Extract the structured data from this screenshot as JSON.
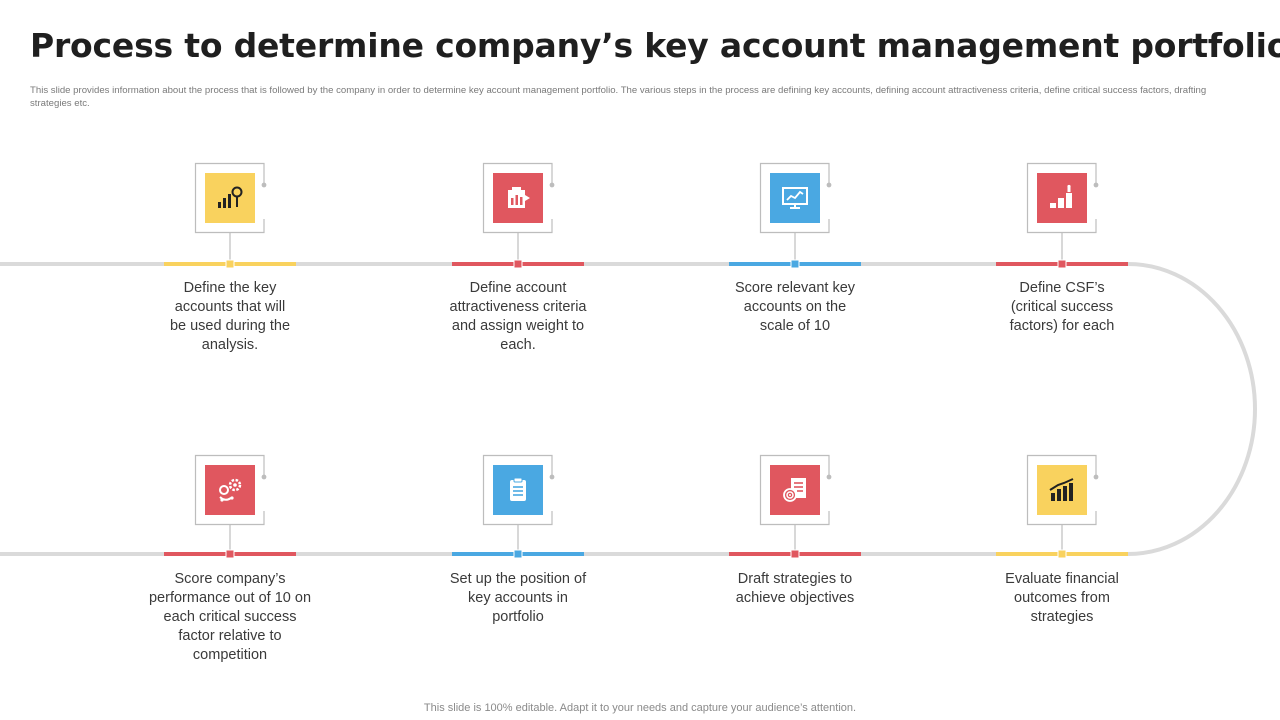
{
  "header": {
    "title": "Process to determine company’s key account management portfolio",
    "description": "This slide provides information about the process that is followed by the company in order to determine key account management portfolio. The various steps in the process are defining key accounts, defining account attractiveness criteria, define critical success factors, drafting strategies etc."
  },
  "colors": {
    "yellow": "#F9D25E",
    "red": "#E0575F",
    "blue": "#4AA8E2",
    "track": "#DADADA"
  },
  "steps": [
    {
      "label": "Define the key accounts that will be used during the analysis.",
      "icon": "bar-chart-magnifier-icon",
      "color": "yellow"
    },
    {
      "label": "Define account attractiveness criteria and assign weight to each.",
      "icon": "building-chart-icon",
      "color": "red"
    },
    {
      "label": "Score relevant key accounts on the scale of 10",
      "icon": "presentation-board-icon",
      "color": "blue"
    },
    {
      "label": "Define CSF’s (critical success factors) for each",
      "icon": "growth-bars-icon",
      "color": "red"
    },
    {
      "label": "Score company’s performance out of 10 on each critical success factor relative to competition",
      "icon": "gears-cycle-icon",
      "color": "red"
    },
    {
      "label": "Set up the position of key accounts in portfolio",
      "icon": "clipboard-icon",
      "color": "blue"
    },
    {
      "label": "Draft strategies to achieve objectives",
      "icon": "target-document-icon",
      "color": "red"
    },
    {
      "label": "Evaluate financial outcomes from strategies",
      "icon": "rising-bars-icon",
      "color": "yellow"
    }
  ],
  "footer": {
    "text": "This slide is 100% editable. Adapt it to your needs and capture your audience’s attention."
  }
}
